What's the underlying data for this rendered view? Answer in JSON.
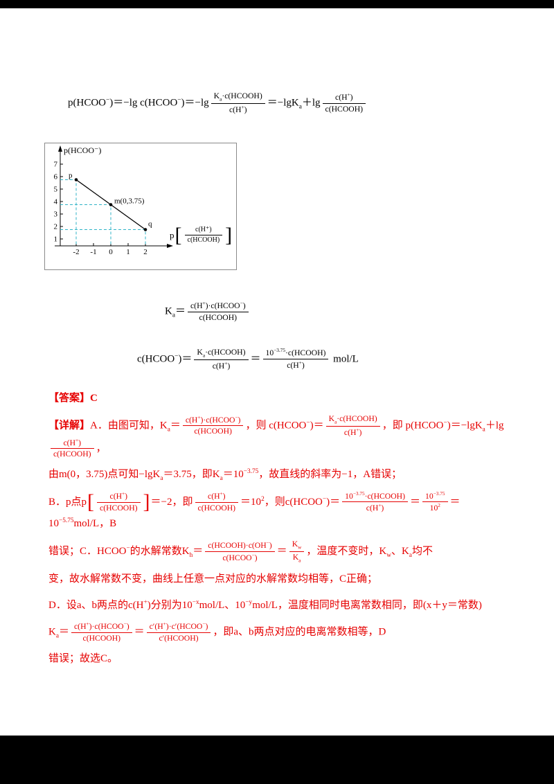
{
  "page": {
    "bg": "#000000",
    "paper_bg": "#ffffff",
    "accent_red": "#e60000",
    "guide_cyan": "#2fb3c7"
  },
  "formulas": {
    "top": {
      "segs": [
        {
          "t": "p(HCOO"
        },
        {
          "sup": "−"
        },
        {
          "t": ")＝−lg c(HCOO"
        },
        {
          "sup": "−"
        },
        {
          "t": ")＝−lg"
        },
        {
          "f": [
            [
              {
                "t": "K"
              },
              {
                "sub": "a"
              },
              {
                "t": "·c(HCOOH)"
              }
            ],
            [
              {
                "t": "c(H"
              },
              {
                "sup": "+"
              },
              {
                "t": ")"
              }
            ]
          ]
        },
        {
          "t": "＝−lgK"
        },
        {
          "sub": "a"
        },
        {
          "t": "＋lg"
        },
        {
          "f": [
            [
              {
                "t": "c(H"
              },
              {
                "sup": "+"
              },
              {
                "t": ")"
              }
            ],
            [
              {
                "t": "c(HCOOH)"
              }
            ]
          ]
        }
      ]
    },
    "ka": {
      "segs": [
        {
          "t": "K"
        },
        {
          "sub": "a"
        },
        {
          "t": "＝"
        },
        {
          "f": [
            [
              {
                "t": "c(H"
              },
              {
                "sup": "+"
              },
              {
                "t": ")·c(HCOO"
              },
              {
                "sup": "−"
              },
              {
                "t": ")"
              }
            ],
            [
              {
                "t": "c(HCOOH)"
              }
            ]
          ]
        }
      ]
    },
    "derive": {
      "segs": [
        {
          "t": "c(HCOO"
        },
        {
          "sup": "−"
        },
        {
          "t": ")＝"
        },
        {
          "f": [
            [
              {
                "t": "K"
              },
              {
                "sub": "a"
              },
              {
                "t": "·c(HCOOH)"
              }
            ],
            [
              {
                "t": "c(H"
              },
              {
                "sup": "+"
              },
              {
                "t": ")"
              }
            ]
          ]
        },
        {
          "t": "＝"
        },
        {
          "f": [
            [
              {
                "t": "10"
              },
              {
                "sup": "−3.75"
              },
              {
                "t": "·c(HCOOH)"
              }
            ],
            [
              {
                "t": "c(H"
              },
              {
                "sup": "+"
              },
              {
                "t": ")"
              }
            ]
          ]
        },
        {
          "t": " mol/L"
        }
      ]
    }
  },
  "chart_data": {
    "type": "line",
    "title": "",
    "ylabel": "p(HCOO⁻)",
    "xlabel_prefix": "p",
    "xlabel_brackets": [
      "[",
      "]"
    ],
    "xlabel_fraction": {
      "num": "c(H⁺)",
      "den": "c(HCOOH)"
    },
    "xticks": [
      -2,
      -1,
      0,
      1,
      2
    ],
    "yticks": [
      1,
      2,
      3,
      4,
      5,
      6,
      7
    ],
    "xlim": [
      -2,
      2
    ],
    "ylim": [
      1,
      7
    ],
    "grid": false,
    "guide_style": "dashed",
    "line_color": "#000000",
    "series": [
      {
        "name": "p(HCOO⁻) vs p[c(H⁺)/c(HCOOH)]",
        "points": [
          {
            "label": "p",
            "x": -2,
            "y": 5.75,
            "label_dx": -11,
            "label_dy": -3
          },
          {
            "label": "m(0,3.75)",
            "x": 0,
            "y": 3.75,
            "label_dx": 5,
            "label_dy": -2
          },
          {
            "label": "q",
            "x": 2,
            "y": 1.75,
            "label_dx": 4,
            "label_dy": -5
          }
        ]
      }
    ]
  },
  "solution": {
    "lines": [
      {
        "segs": [
          {
            "b": "【答案】"
          },
          {
            "b": "C"
          }
        ]
      },
      {
        "segs": [
          {
            "b": "【详解】"
          },
          {
            "t": "A．由图可知，K"
          },
          {
            "sub": "a"
          },
          {
            "t": "＝"
          },
          {
            "f": [
              [
                {
                  "t": "c(H"
                },
                {
                  "sup": "+"
                },
                {
                  "t": ")·c(HCOO"
                },
                {
                  "sup": "−"
                },
                {
                  "t": ")"
                }
              ],
              [
                {
                  "t": "c(HCOOH)"
                }
              ]
            ]
          },
          {
            "t": "，则 c(HCOO"
          },
          {
            "sup": "−"
          },
          {
            "t": ")＝"
          },
          {
            "f": [
              [
                {
                  "t": "K"
                },
                {
                  "sub": "a"
                },
                {
                  "t": "·c(HCOOH)"
                }
              ],
              [
                {
                  "t": "c(H"
                },
                {
                  "sup": "+"
                },
                {
                  "t": ")"
                }
              ]
            ]
          },
          {
            "t": "，即 p(HCOO"
          },
          {
            "sup": "−"
          },
          {
            "t": ")＝−lgK"
          },
          {
            "sub": "a"
          },
          {
            "t": "＋lg"
          },
          {
            "f": [
              [
                {
                  "t": "c(H"
                },
                {
                  "sup": "+"
                },
                {
                  "t": ")"
                }
              ],
              [
                {
                  "t": "c(HCOOH)"
                }
              ]
            ]
          },
          {
            "t": "，"
          }
        ]
      },
      {
        "segs": [
          {
            "t": "由m(0，3.75)点可知−lgK"
          },
          {
            "sub": "a"
          },
          {
            "t": "＝3.75，即K"
          },
          {
            "sub": "a"
          },
          {
            "t": "＝10"
          },
          {
            "sup": "−3.75"
          },
          {
            "t": "，故直线的斜率为−1，A错误；"
          }
        ]
      },
      {
        "segs": [
          {
            "t": "B．p点p"
          },
          {
            "big": "["
          },
          {
            "f": [
              [
                {
                  "t": "c(H"
                },
                {
                  "sup": "+"
                },
                {
                  "t": ")"
                }
              ],
              [
                {
                  "t": "c(HCOOH)"
                }
              ]
            ]
          },
          {
            "big": "]"
          },
          {
            "t": "＝−2，即"
          },
          {
            "f": [
              [
                {
                  "t": "c(H"
                },
                {
                  "sup": "+"
                },
                {
                  "t": ")"
                }
              ],
              [
                {
                  "t": "c(HCOOH)"
                }
              ]
            ]
          },
          {
            "t": "＝10"
          },
          {
            "sup": "2"
          },
          {
            "t": "，则c(HCOO"
          },
          {
            "sup": "−"
          },
          {
            "t": ")＝"
          },
          {
            "f": [
              [
                {
                  "t": "10"
                },
                {
                  "sup": "−3.75"
                },
                {
                  "t": "·c(HCOOH)"
                }
              ],
              [
                {
                  "t": "c(H"
                },
                {
                  "sup": "+"
                },
                {
                  "t": ")"
                }
              ]
            ]
          },
          {
            "t": "＝"
          },
          {
            "f": [
              [
                {
                  "t": "10"
                },
                {
                  "sup": "−3.75"
                }
              ],
              [
                {
                  "t": "10"
                },
                {
                  "sup": "2"
                }
              ]
            ]
          },
          {
            "t": "＝10"
          },
          {
            "sup": "−5.75"
          },
          {
            "t": "mol/L，B"
          }
        ]
      },
      {
        "segs": [
          {
            "t": "错误；C．HCOO"
          },
          {
            "sup": "−"
          },
          {
            "t": "的水解常数K"
          },
          {
            "sub": "h"
          },
          {
            "t": "＝"
          },
          {
            "f": [
              [
                {
                  "t": "c(HCOOH)·c(OH"
                },
                {
                  "sup": "−"
                },
                {
                  "t": ")"
                }
              ],
              [
                {
                  "t": "c(HCOO"
                },
                {
                  "sup": "−"
                },
                {
                  "t": ")"
                }
              ]
            ]
          },
          {
            "t": "＝"
          },
          {
            "f": [
              [
                {
                  "t": "K"
                },
                {
                  "sub": "w"
                }
              ],
              [
                {
                  "t": "K"
                },
                {
                  "sub": "a"
                }
              ]
            ]
          },
          {
            "t": "，温度不变时，K"
          },
          {
            "sub": "w"
          },
          {
            "t": "、K"
          },
          {
            "sub": "a"
          },
          {
            "t": "均不"
          }
        ]
      },
      {
        "segs": [
          {
            "t": "变，故水解常数不变，曲线上任意一点对应的水解常数均相等，C正确；"
          }
        ]
      },
      {
        "segs": [
          {
            "t": "D．设a、b两点的c(H"
          },
          {
            "sup": "+"
          },
          {
            "t": ")分别为10"
          },
          {
            "sup": "−x"
          },
          {
            "t": "mol/L、10"
          },
          {
            "sup": "−y"
          },
          {
            "t": "mol/L，温度相同时电离常数相同，即(x＋y＝常数)"
          }
        ]
      },
      {
        "segs": [
          {
            "t": "K"
          },
          {
            "sub": "a"
          },
          {
            "t": "＝"
          },
          {
            "f": [
              [
                {
                  "t": "c(H"
                },
                {
                  "sup": "+"
                },
                {
                  "t": ")·c(HCOO"
                },
                {
                  "sup": "−"
                },
                {
                  "t": ")"
                }
              ],
              [
                {
                  "t": "c(HCOOH)"
                }
              ]
            ]
          },
          {
            "t": "＝"
          },
          {
            "f": [
              [
                {
                  "t": "c′(H"
                },
                {
                  "sup": "+"
                },
                {
                  "t": ")·c′(HCOO"
                },
                {
                  "sup": "−"
                },
                {
                  "t": ")"
                }
              ],
              [
                {
                  "t": "c′(HCOOH)"
                }
              ]
            ]
          },
          {
            "t": "，即a、b两点对应的电离常数相等，D"
          }
        ]
      },
      {
        "segs": [
          {
            "t": "错误；故选C。"
          }
        ]
      }
    ]
  }
}
